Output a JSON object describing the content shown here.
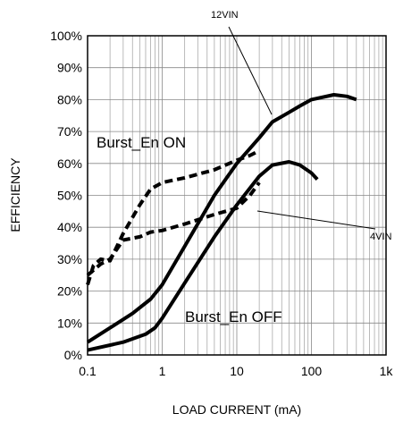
{
  "chart_data": {
    "type": "line",
    "title": "",
    "xlabel": "LOAD CURRENT (mA)",
    "ylabel": "EFFICIENCY",
    "x_scale": "log",
    "xlim": [
      0.1,
      1000
    ],
    "ylim": [
      0,
      100
    ],
    "x_ticks": [
      {
        "value": 0.1,
        "label": "0.1"
      },
      {
        "value": 1,
        "label": "1"
      },
      {
        "value": 10,
        "label": "10"
      },
      {
        "value": 100,
        "label": "100"
      },
      {
        "value": 1000,
        "label": "1k"
      }
    ],
    "y_ticks": [
      {
        "value": 0,
        "label": "0%"
      },
      {
        "value": 10,
        "label": "10%"
      },
      {
        "value": 20,
        "label": "20%"
      },
      {
        "value": 30,
        "label": "30%"
      },
      {
        "value": 40,
        "label": "40%"
      },
      {
        "value": 50,
        "label": "50%"
      },
      {
        "value": 60,
        "label": "60%"
      },
      {
        "value": 70,
        "label": "70%"
      },
      {
        "value": 80,
        "label": "80%"
      },
      {
        "value": 90,
        "label": "90%"
      },
      {
        "value": 100,
        "label": "100%"
      }
    ],
    "grid": true,
    "legend": "none",
    "series": [
      {
        "id": "12vin-burst-off",
        "style": "solid",
        "color": "#000000",
        "x": [
          0.1,
          0.2,
          0.4,
          0.7,
          1,
          2,
          5,
          10,
          20,
          30,
          50,
          70,
          100,
          200,
          300,
          400
        ],
        "y": [
          4,
          8.5,
          13,
          17.5,
          22,
          34,
          50,
          60,
          68,
          73,
          76,
          78,
          80,
          81.5,
          81,
          80
        ]
      },
      {
        "id": "4vin-burst-off",
        "style": "solid",
        "color": "#000000",
        "x": [
          0.1,
          0.3,
          0.6,
          0.8,
          1,
          2,
          5,
          10,
          20,
          30,
          50,
          70,
          100,
          120
        ],
        "y": [
          1.5,
          4,
          6.5,
          8.5,
          11.5,
          22.5,
          37,
          47,
          56,
          59.5,
          60.5,
          59.5,
          57,
          55
        ]
      },
      {
        "id": "12vin-burst-on",
        "style": "dashed",
        "color": "#000000",
        "x": [
          0.1,
          0.12,
          0.15,
          0.2,
          0.3,
          0.5,
          0.7,
          1,
          2,
          5,
          10,
          15,
          20
        ],
        "y": [
          22,
          28,
          30,
          29.5,
          38,
          47,
          52,
          54,
          55.5,
          58,
          61,
          62.5,
          64
        ]
      },
      {
        "id": "4vin-burst-on",
        "style": "dashed",
        "color": "#000000",
        "x": [
          0.1,
          0.15,
          0.2,
          0.3,
          0.5,
          0.7,
          1,
          2,
          5,
          10,
          15,
          20
        ],
        "y": [
          25,
          28.5,
          30,
          36,
          37,
          38.5,
          39,
          41,
          44,
          46,
          50,
          54
        ]
      }
    ],
    "annotations": [
      {
        "id": "label-12vin",
        "text": "12VIN"
      },
      {
        "id": "label-4vin",
        "text": "4VIN"
      },
      {
        "id": "label-burst-on",
        "text": "Burst_En ON"
      },
      {
        "id": "label-burst-off",
        "text": "Burst_En OFF"
      }
    ]
  }
}
